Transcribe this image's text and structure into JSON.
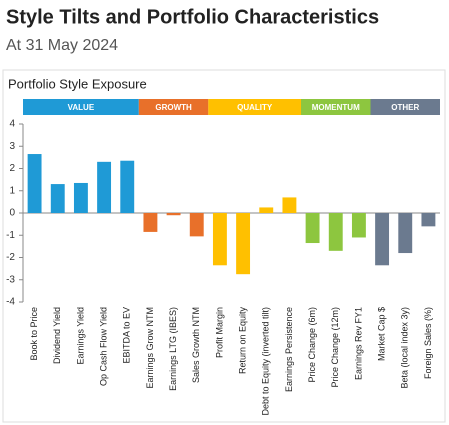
{
  "header": {
    "title": "Style Tilts and Portfolio Characteristics",
    "subtitle": "At 31 May 2024"
  },
  "chart_data": {
    "type": "bar",
    "title": "Portfolio Style Exposure",
    "series": [
      {
        "name": "VALUE",
        "color": "#1f9ad6",
        "categories": [
          "Book to Price",
          "Dividend Yield",
          "Earnings Yield",
          "Op Cash Flow Yield",
          "EBITDA to EV"
        ],
        "values": [
          2.65,
          1.3,
          1.35,
          2.3,
          2.35
        ]
      },
      {
        "name": "GROWTH",
        "color": "#e8702a",
        "categories": [
          "Earnings Grow NTM",
          "Earnings LTG (IBES)",
          "Sales Growth NTM"
        ],
        "values": [
          -0.85,
          -0.1,
          -1.05
        ]
      },
      {
        "name": "QUALITY",
        "color": "#ffc000",
        "categories": [
          "Profit Margin",
          "Return on Equity",
          "Debt to Equity (inverted tilt)",
          "Earnings Persistence"
        ],
        "values": [
          -2.35,
          -2.75,
          0.25,
          0.7
        ]
      },
      {
        "name": "MOMENTUM",
        "color": "#8dc63f",
        "categories": [
          "Price Change (6m)",
          "Price Change (12m)",
          "Earnings Rev FY1"
        ],
        "values": [
          -1.35,
          -1.7,
          -1.1
        ]
      },
      {
        "name": "OTHER",
        "color": "#6b7a8f",
        "categories": [
          "Market Cap $",
          "Beta (local index 3y)",
          "Foreign Sales (%)"
        ],
        "values": [
          -2.35,
          -1.8,
          -0.6
        ]
      }
    ],
    "ylim": [
      -4,
      4
    ],
    "yticks": [
      -4,
      -3,
      -2,
      -1,
      0,
      1,
      2,
      3,
      4
    ],
    "grid": false
  }
}
